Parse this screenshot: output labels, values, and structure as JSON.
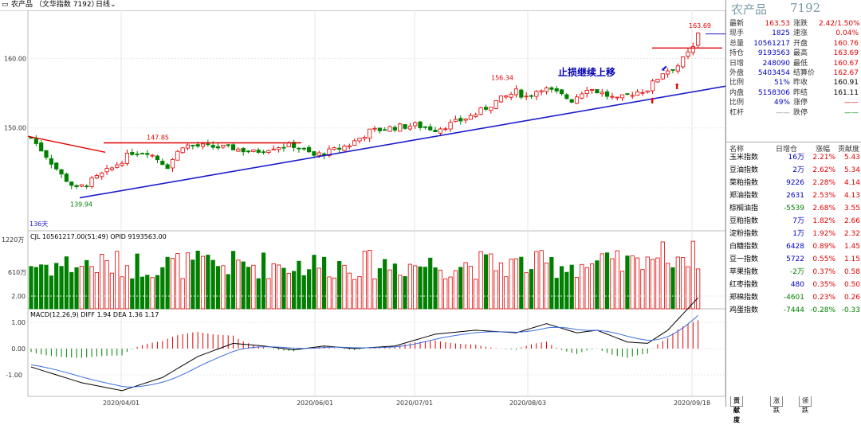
{
  "window": {
    "title": "农产品 （文华指数 7192）",
    "period": "日线",
    "icons": [
      "collapse-icon",
      "chevron-down-icon"
    ]
  },
  "chart": {
    "annotation": "止损继续上移",
    "price_labels": {
      "high": "163.69",
      "peak_mid": "156.34",
      "mid_level": "147.85",
      "low": "139.94"
    },
    "days_label": "136天",
    "y_ticks_main": [
      "160.00",
      "150.00"
    ],
    "volume_header": "CJL 10561217.00(51:49) OPID 9193563.00",
    "volume_ticks": [
      "1220万",
      "610万"
    ],
    "macd_header": "MACD(12,26,9) DIFF 1.94 DEA 1.36 1.17",
    "macd_ticks": [
      "2.00",
      "1.00",
      "0.00",
      "-1.00"
    ],
    "x_dates": [
      "2020/04/01",
      "2020/06/01",
      "2020/07/01",
      "2020/08/03",
      "2020/09/18"
    ]
  },
  "chart_data": {
    "type": "candlestick",
    "y_range": [
      136,
      166
    ],
    "key_levels": {
      "high": 163.69,
      "peak_mid": 156.34,
      "mid_level": 147.85,
      "low": 139.94
    },
    "x_ticks": [
      "2020/04/01",
      "2020/06/01",
      "2020/07/01",
      "2020/08/03",
      "2020/09/18"
    ]
  },
  "panel": {
    "name": "农产品",
    "code": "7192",
    "quotes": [
      {
        "l": "最新",
        "v": "163.53",
        "vc": "red",
        "l2": "涨跌",
        "v2": "2.42/1.50%",
        "v2c": "red"
      },
      {
        "l": "现手",
        "v": "1825",
        "vc": "blue",
        "l2": "速涨",
        "v2": "0.04%",
        "v2c": "red"
      },
      {
        "l": "总量",
        "v": "10561217",
        "vc": "blue",
        "l2": "开盘",
        "v2": "160.76",
        "v2c": "red"
      },
      {
        "l": "持仓",
        "v": "9193563",
        "vc": "blue",
        "l2": "最高",
        "v2": "163.69",
        "v2c": "red"
      },
      {
        "l": "日增",
        "v": "248090",
        "vc": "blue",
        "l2": "最低",
        "v2": "160.67",
        "v2c": "red"
      },
      {
        "l": "外盘",
        "v": "5403454",
        "vc": "blue",
        "l2": "结算价",
        "v2": "162.67",
        "v2c": "red"
      },
      {
        "l": "比例",
        "v": "51%",
        "vc": "blue",
        "l2": "昨收",
        "v2": "160.91",
        "v2c": "black"
      },
      {
        "l": "内盘",
        "v": "5158306",
        "vc": "blue",
        "l2": "昨结",
        "v2": "161.11",
        "v2c": "black"
      },
      {
        "l": "比例",
        "v": "49%",
        "vc": "blue",
        "l2": "涨停",
        "v2": "——",
        "v2c": "red"
      },
      {
        "l": "杠杆",
        "v": "——",
        "vc": "gray",
        "l2": "跌停",
        "v2": "——",
        "v2c": "green"
      }
    ],
    "table_headers": [
      "名称",
      "日增仓",
      "涨幅",
      "贡献度"
    ],
    "table": [
      [
        "玉米指数",
        "16万",
        "2.21%",
        "5.43"
      ],
      [
        "豆油指数",
        "2万",
        "2.62%",
        "5.34"
      ],
      [
        "菜粕指数",
        "9226",
        "2.28%",
        "4.14"
      ],
      [
        "郑油指数",
        "2631",
        "2.53%",
        "4.13"
      ],
      [
        "棕榈油指",
        "-5539",
        "2.68%",
        "3.55"
      ],
      [
        "豆粕指数",
        "7万",
        "1.82%",
        "2.66"
      ],
      [
        "淀粉指数",
        "1万",
        "1.92%",
        "2.32"
      ],
      [
        "白糖指数",
        "6428",
        "0.89%",
        "1.45"
      ],
      [
        "豆一指数",
        "5722",
        "0.55%",
        "1.15"
      ],
      [
        "苹果指数",
        "-2万",
        "0.37%",
        "0.58"
      ],
      [
        "红枣指数",
        "480",
        "0.35%",
        "0.50"
      ],
      [
        "郑棉指数",
        "-4601",
        "0.23%",
        "0.26"
      ],
      [
        "鸡蛋指数",
        "-7444",
        "-0.28%",
        "-0.33"
      ]
    ],
    "tabs": [
      "贡献度",
      "涨跌",
      "领跌"
    ]
  }
}
